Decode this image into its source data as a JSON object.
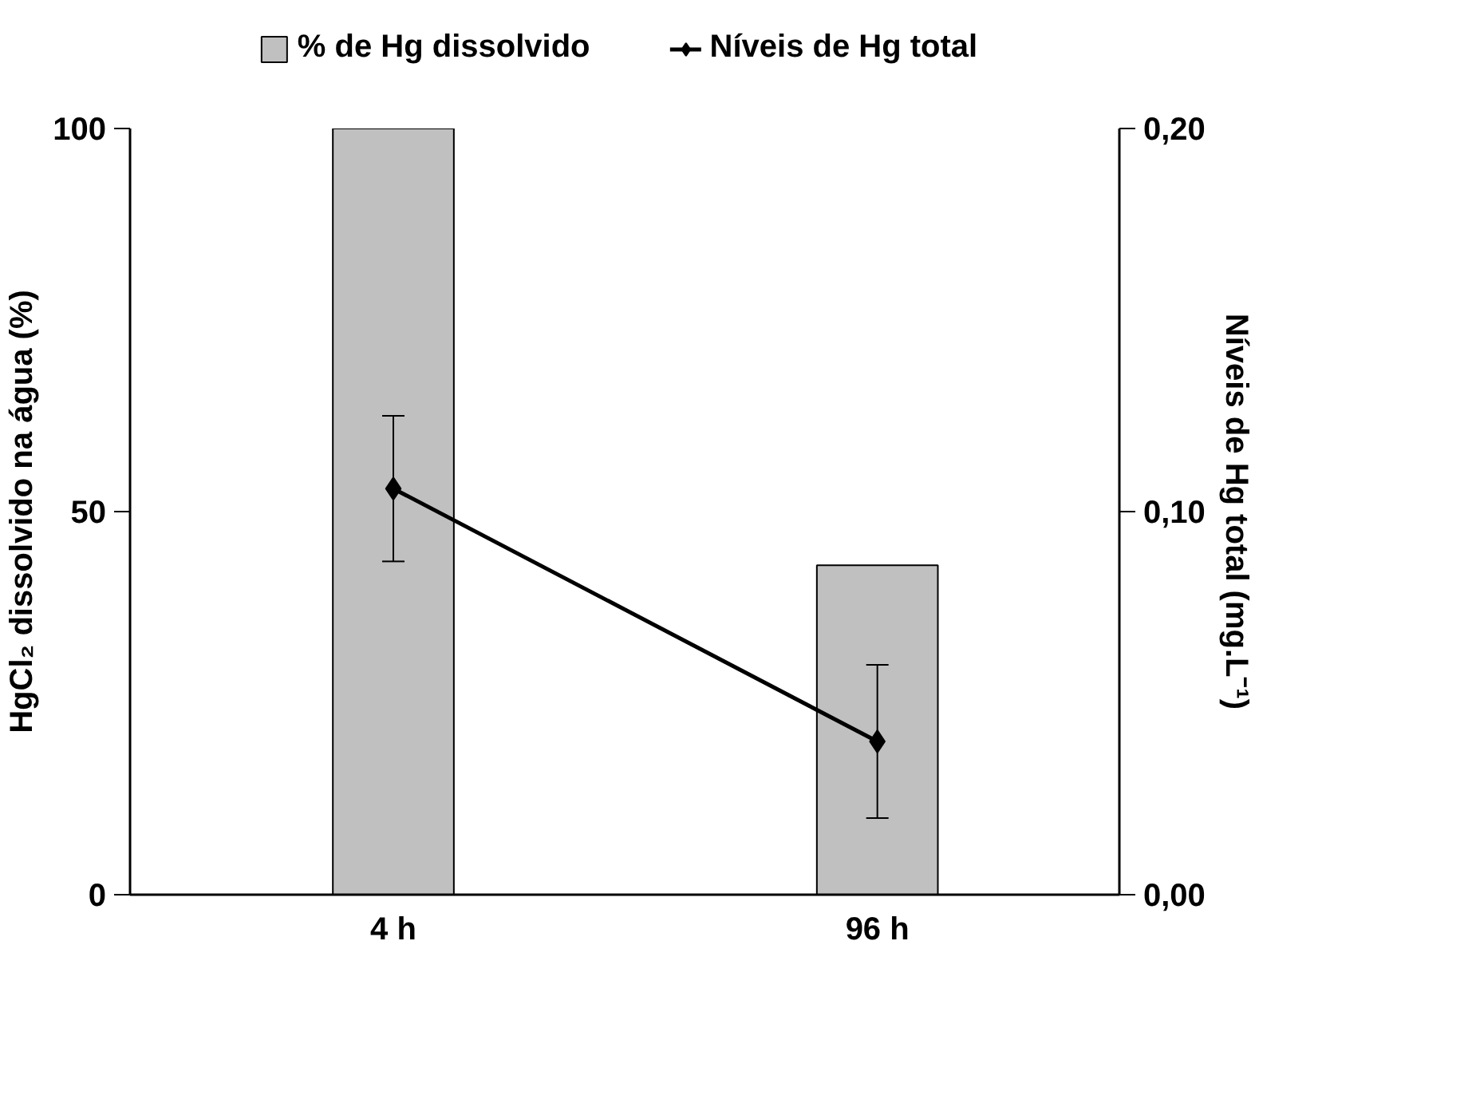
{
  "chart_data": {
    "type": "bar",
    "categories": [
      "4 h",
      "96 h"
    ],
    "ylabel": "HgCl₂ dissolvido na água (%)",
    "y2label": "Níveis de Hg total (mg.L⁻¹)",
    "ylim": [
      0,
      100
    ],
    "yticks": [
      0,
      50,
      100
    ],
    "y2lim": [
      0,
      0.2
    ],
    "y2ticks": [
      {
        "value": 0,
        "label": "0,00"
      },
      {
        "value": 0.1,
        "label": "0,10"
      },
      {
        "value": 0.2,
        "label": "0,20"
      }
    ],
    "series": [
      {
        "name": "% de Hg dissolvido",
        "type": "bar",
        "color": "#c0c0c0",
        "values": [
          100,
          43
        ]
      },
      {
        "name": "Níveis de Hg total",
        "type": "line",
        "axis": "y2",
        "color": "#000000",
        "marker": "diamond",
        "values": [
          0.106,
          0.04
        ],
        "errors": [
          0.019,
          0.02
        ]
      }
    ],
    "grid": false,
    "legend": "top"
  }
}
